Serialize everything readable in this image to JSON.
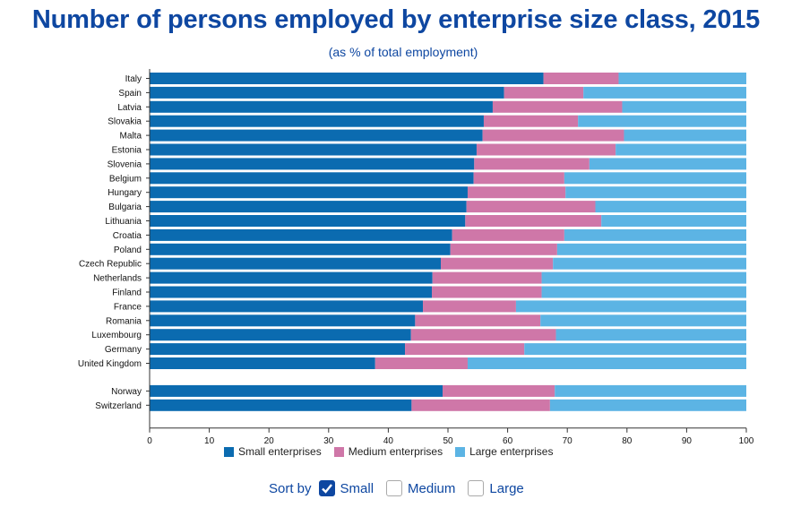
{
  "colors": {
    "small": "#0b6bb0",
    "medium": "#cf77a8",
    "large": "#5cb4e4",
    "title": "#0e47a1"
  },
  "legend": [
    {
      "key": "small",
      "label": "Small enterprises"
    },
    {
      "key": "medium",
      "label": "Medium enterprises"
    },
    {
      "key": "large",
      "label": "Large enterprises"
    }
  ],
  "sort": {
    "label": "Sort by",
    "options": [
      {
        "label": "Small",
        "checked": true
      },
      {
        "label": "Medium",
        "checked": false
      },
      {
        "label": "Large",
        "checked": false
      }
    ]
  },
  "chart_data": {
    "type": "bar",
    "orientation": "horizontal",
    "stacked": true,
    "title": "Number of persons employed by enterprise size class, 2015",
    "subtitle": "(as % of total employment)",
    "xlim": [
      0,
      100
    ],
    "xticks": [
      0,
      10,
      20,
      30,
      40,
      50,
      60,
      70,
      80,
      90,
      100
    ],
    "categories": [
      "Italy",
      "Spain",
      "Latvia",
      "Slovakia",
      "Malta",
      "Estonia",
      "Slovenia",
      "Belgium",
      "Hungary",
      "Bulgaria",
      "Lithuania",
      "Croatia",
      "Poland",
      "Czech Republic",
      "Netherlands",
      "Finland",
      "France",
      "Romania",
      "Luxembourg",
      "Germany",
      "United Kingdom",
      "Norway",
      "Switzerland"
    ],
    "groups": [
      21,
      2
    ],
    "series": [
      {
        "name": "Small enterprises",
        "key": "small",
        "values": [
          66.0,
          59.4,
          57.5,
          56.0,
          55.8,
          54.8,
          54.4,
          54.3,
          53.3,
          53.1,
          52.9,
          50.7,
          50.4,
          48.8,
          47.4,
          47.3,
          45.8,
          44.5,
          43.8,
          42.8,
          37.8,
          49.1,
          43.9
        ]
      },
      {
        "name": "Medium enterprises",
        "key": "medium",
        "values": [
          12.6,
          13.3,
          21.7,
          15.8,
          23.7,
          23.3,
          19.3,
          15.2,
          16.4,
          21.6,
          22.8,
          18.8,
          17.9,
          18.8,
          18.3,
          18.4,
          15.6,
          21.0,
          24.3,
          20.0,
          15.5,
          18.8,
          23.2
        ]
      },
      {
        "name": "Large enterprises",
        "key": "large",
        "values": [
          21.4,
          27.3,
          20.8,
          28.2,
          20.5,
          21.9,
          26.3,
          30.5,
          30.3,
          25.3,
          24.3,
          30.5,
          31.7,
          32.4,
          34.3,
          34.3,
          38.6,
          34.5,
          31.9,
          37.2,
          46.7,
          32.1,
          32.9
        ]
      }
    ]
  }
}
